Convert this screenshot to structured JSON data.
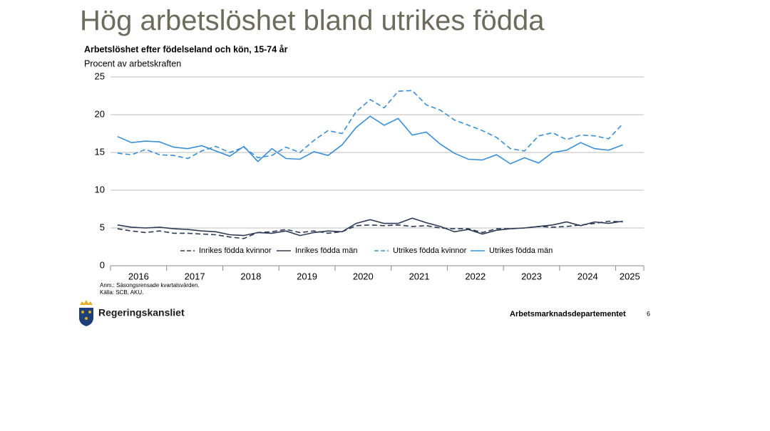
{
  "page": {
    "title": "Hög arbetslöshet bland utrikes födda",
    "footer_logo": "Regeringskansliet",
    "footer_department": "Arbetsmarknadsdepartementet",
    "page_number": "6"
  },
  "chart_data": {
    "type": "line",
    "title": "Arbetslöshet efter födelseland och kön, 15-74 år",
    "y_label": "Procent av arbetskraften",
    "notes": [
      "Anm.: Säsongsrensade kvartalsvärden.",
      "Källa: SCB, AKU."
    ],
    "categories": [
      "2016",
      null,
      null,
      null,
      "2017",
      null,
      null,
      null,
      "2018",
      null,
      null,
      null,
      "2019",
      null,
      null,
      null,
      "2020",
      null,
      null,
      null,
      "2021",
      null,
      null,
      null,
      "2022",
      null,
      null,
      null,
      "2023",
      null,
      null,
      null,
      "2024",
      null,
      null,
      null,
      "2025",
      null
    ],
    "ylim": [
      0,
      25
    ],
    "yticks": [
      0,
      5,
      10,
      15,
      20,
      25
    ],
    "grid": true,
    "series": [
      {
        "name": "Inrikes födda kvinnor",
        "color": "#2e3b55",
        "dashed": true,
        "values": [
          4.9,
          4.6,
          4.4,
          4.6,
          4.3,
          4.3,
          4.2,
          4.1,
          3.8,
          3.6,
          4.4,
          4.5,
          4.8,
          4.4,
          4.6,
          4.3,
          4.5,
          5.3,
          5.4,
          5.3,
          5.4,
          5.2,
          5.3,
          5.0,
          4.9,
          4.9,
          4.4,
          4.9,
          4.9,
          5.0,
          5.2,
          5.1,
          5.2,
          5.4,
          5.6,
          5.9,
          5.8,
          null
        ]
      },
      {
        "name": "Inrikes födda män",
        "color": "#2e3b55",
        "dashed": false,
        "values": [
          5.4,
          5.1,
          5.0,
          5.1,
          4.9,
          4.8,
          4.6,
          4.5,
          4.1,
          4.0,
          4.4,
          4.3,
          4.6,
          4.0,
          4.4,
          4.6,
          4.5,
          5.6,
          6.1,
          5.6,
          5.6,
          6.3,
          5.7,
          5.2,
          4.5,
          4.8,
          4.2,
          4.7,
          4.9,
          5.0,
          5.2,
          5.4,
          5.8,
          5.3,
          5.8,
          5.6,
          5.9,
          null
        ]
      },
      {
        "name": "Utrikes födda kvinnor",
        "color": "#3b8fd4",
        "dashed": true,
        "values": [
          14.9,
          14.7,
          15.4,
          14.7,
          14.6,
          14.2,
          15.2,
          15.8,
          15.0,
          15.7,
          14.3,
          14.6,
          15.7,
          15.0,
          16.6,
          17.9,
          17.5,
          20.4,
          22.0,
          20.9,
          23.1,
          23.2,
          21.3,
          20.6,
          19.3,
          18.6,
          17.9,
          17.0,
          15.5,
          15.2,
          17.2,
          17.6,
          16.7,
          17.3,
          17.2,
          16.8,
          18.8,
          null
        ]
      },
      {
        "name": "Utrikes födda män",
        "color": "#3b8fd4",
        "dashed": false,
        "values": [
          17.1,
          16.3,
          16.5,
          16.4,
          15.7,
          15.5,
          15.9,
          15.2,
          14.5,
          15.8,
          13.8,
          15.5,
          14.2,
          14.1,
          15.1,
          14.6,
          16.0,
          18.3,
          19.8,
          18.6,
          19.5,
          17.3,
          17.7,
          16.1,
          14.9,
          14.1,
          14.0,
          14.7,
          13.5,
          14.3,
          13.6,
          15.0,
          15.3,
          16.3,
          15.5,
          15.3,
          16.0,
          null
        ]
      }
    ]
  }
}
